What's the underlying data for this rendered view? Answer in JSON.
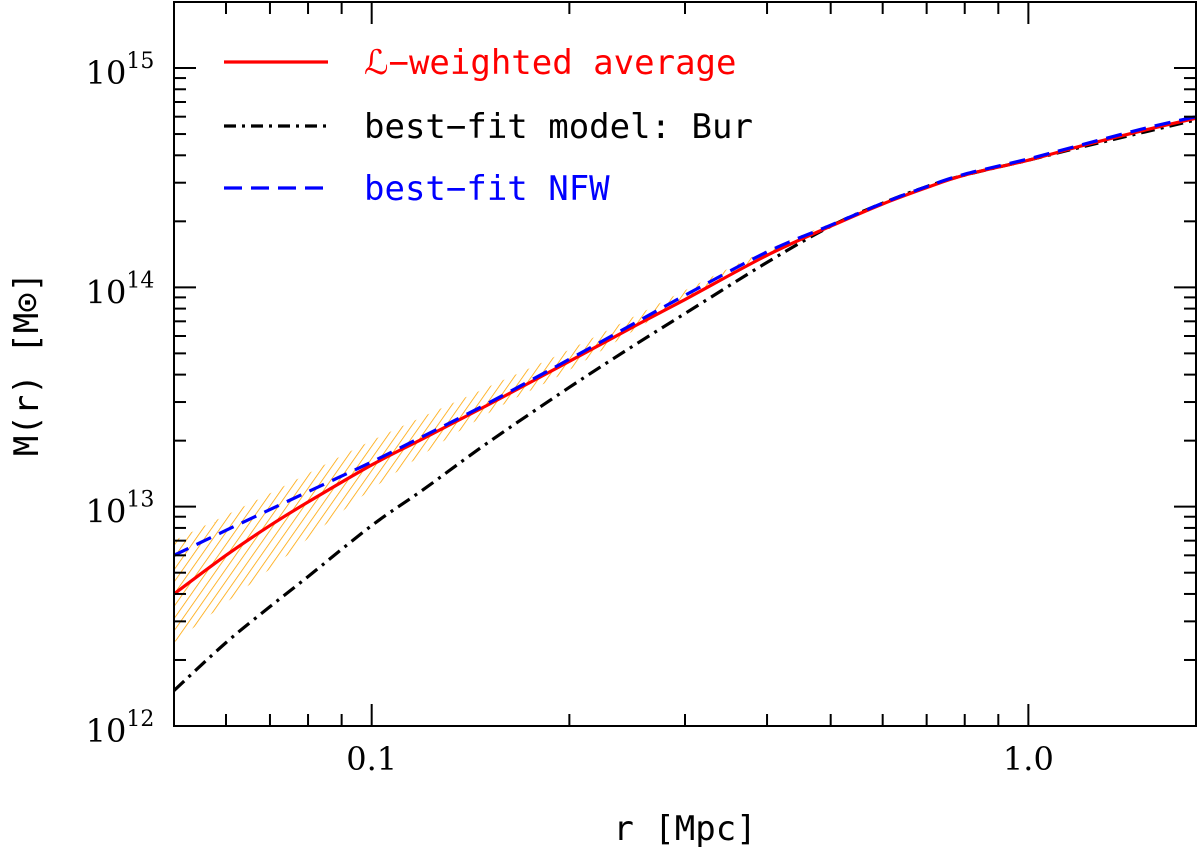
{
  "chart_data": {
    "type": "line",
    "xscale": "log",
    "yscale": "log",
    "xlim": [
      0.05,
      1.8
    ],
    "ylim": [
      1000000000000.0,
      2000000000000000.0
    ],
    "xlabel": "r [Mpc]",
    "ylabel": "M(r) [M⊙]",
    "x_ticks": [
      {
        "value": 0.1,
        "label": "0.1"
      },
      {
        "value": 1.0,
        "label": "1.0"
      }
    ],
    "y_ticks": [
      {
        "value": 1000000000000.0,
        "base": "10",
        "exp": "12"
      },
      {
        "value": 10000000000000.0,
        "base": "10",
        "exp": "13"
      },
      {
        "value": 100000000000000.0,
        "base": "10",
        "exp": "14"
      },
      {
        "value": 1000000000000000.0,
        "base": "10",
        "exp": "15"
      }
    ],
    "colors": {
      "weighted": "#ff0000",
      "bur": "#000000",
      "nfw": "#0000ff",
      "band": "#ffa500"
    },
    "legend": [
      {
        "label": "ℒ−weighted average",
        "style": "solid",
        "color": "#ff0000"
      },
      {
        "label": "best−fit model: Bur",
        "style": "dashdot",
        "color": "#000000"
      },
      {
        "label": "best−fit NFW",
        "style": "dashed",
        "color": "#0000ff"
      }
    ],
    "band": {
      "name": "uncertainty band",
      "x": [
        0.05,
        0.07,
        0.1,
        0.15,
        0.2,
        0.3,
        0.4,
        0.5
      ],
      "lower": [
        2400000000000.0,
        5200000000000.0,
        12000000000000.0,
        26500000000000.0,
        42000000000000.0,
        88000000000000.0,
        140000000000000.0,
        190000000000000.0
      ],
      "upper": [
        7000000000000.0,
        11500000000000.0,
        20000000000000.0,
        35000000000000.0,
        52000000000000.0,
        97000000000000.0,
        148000000000000.0,
        196000000000000.0
      ]
    },
    "series": [
      {
        "name": "ℒ−weighted average",
        "style": "solid",
        "x": [
          0.05,
          0.06,
          0.07,
          0.08,
          0.1,
          0.12,
          0.15,
          0.2,
          0.25,
          0.3,
          0.4,
          0.5,
          0.6,
          0.7,
          0.8,
          1.0,
          1.2,
          1.5,
          1.8
        ],
        "y": [
          4000000000000.0,
          6000000000000.0,
          8200000000000.0,
          10500000000000.0,
          15500000000000.0,
          20500000000000.0,
          29000000000000.0,
          46000000000000.0,
          66000000000000.0,
          88000000000000.0,
          140000000000000.0,
          190000000000000.0,
          240000000000000.0,
          285000000000000.0,
          325000000000000.0,
          380000000000000.0,
          440000000000000.0,
          520000000000000.0,
          590000000000000.0
        ]
      },
      {
        "name": "best−fit model: Bur",
        "style": "dashdot",
        "x": [
          0.05,
          0.06,
          0.07,
          0.08,
          0.1,
          0.12,
          0.15,
          0.2,
          0.25,
          0.3,
          0.4,
          0.5,
          0.6,
          0.7,
          0.8,
          1.0,
          1.2,
          1.5,
          1.8
        ],
        "y": [
          1450000000000.0,
          2400000000000.0,
          3500000000000.0,
          4800000000000.0,
          8200000000000.0,
          12000000000000.0,
          19500000000000.0,
          35000000000000.0,
          54000000000000.0,
          76000000000000.0,
          130000000000000.0,
          190000000000000.0,
          242000000000000.0,
          288000000000000.0,
          325000000000000.0,
          380000000000000.0,
          435000000000000.0,
          510000000000000.0,
          580000000000000.0
        ]
      },
      {
        "name": "best−fit NFW",
        "style": "dashed",
        "x": [
          0.05,
          0.06,
          0.07,
          0.08,
          0.1,
          0.12,
          0.15,
          0.2,
          0.25,
          0.3,
          0.4,
          0.5,
          0.6,
          0.7,
          0.8,
          1.0,
          1.2,
          1.5,
          1.8
        ],
        "y": [
          6000000000000.0,
          7800000000000.0,
          9700000000000.0,
          11700000000000.0,
          16000000000000.0,
          21000000000000.0,
          29500000000000.0,
          47000000000000.0,
          68000000000000.0,
          92000000000000.0,
          145000000000000.0,
          192000000000000.0,
          242000000000000.0,
          288000000000000.0,
          328000000000000.0,
          385000000000000.0,
          445000000000000.0,
          530000000000000.0,
          600000000000000.0
        ]
      }
    ]
  }
}
